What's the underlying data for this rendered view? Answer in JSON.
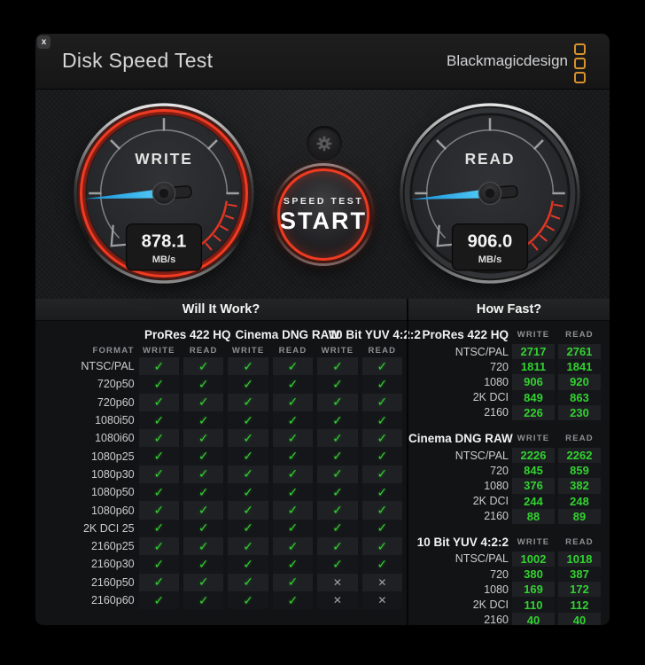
{
  "titlebar": {
    "title": "Disk Speed Test",
    "brand": "Blackmagicdesign",
    "close_label": "x"
  },
  "gauges": {
    "write": {
      "label": "WRITE",
      "value": "878.1",
      "unit": "MB/s",
      "needle_angle": 176
    },
    "read": {
      "label": "READ",
      "value": "906.0",
      "unit": "MB/s",
      "needle_angle": 175.5
    }
  },
  "start_button": {
    "line1": "SPEED TEST",
    "line2": "START"
  },
  "icons": {
    "check": "✓",
    "cross": "✕",
    "gear": "gear-icon"
  },
  "will_it_work": {
    "title": "Will It Work?",
    "format_header": "FORMAT",
    "codecs": [
      "ProRes 422 HQ",
      "Cinema DNG RAW",
      "10 Bit YUV 4:2:2"
    ],
    "sub_headers": [
      "WRITE",
      "READ",
      "WRITE",
      "READ",
      "WRITE",
      "READ"
    ],
    "rows": [
      {
        "format": "NTSC/PAL",
        "results": [
          true,
          true,
          true,
          true,
          true,
          true
        ]
      },
      {
        "format": "720p50",
        "results": [
          true,
          true,
          true,
          true,
          true,
          true
        ]
      },
      {
        "format": "720p60",
        "results": [
          true,
          true,
          true,
          true,
          true,
          true
        ]
      },
      {
        "format": "1080i50",
        "results": [
          true,
          true,
          true,
          true,
          true,
          true
        ]
      },
      {
        "format": "1080i60",
        "results": [
          true,
          true,
          true,
          true,
          true,
          true
        ]
      },
      {
        "format": "1080p25",
        "results": [
          true,
          true,
          true,
          true,
          true,
          true
        ]
      },
      {
        "format": "1080p30",
        "results": [
          true,
          true,
          true,
          true,
          true,
          true
        ]
      },
      {
        "format": "1080p50",
        "results": [
          true,
          true,
          true,
          true,
          true,
          true
        ]
      },
      {
        "format": "1080p60",
        "results": [
          true,
          true,
          true,
          true,
          true,
          true
        ]
      },
      {
        "format": "2K DCI 25",
        "results": [
          true,
          true,
          true,
          true,
          true,
          true
        ]
      },
      {
        "format": "2160p25",
        "results": [
          true,
          true,
          true,
          true,
          true,
          true
        ]
      },
      {
        "format": "2160p30",
        "results": [
          true,
          true,
          true,
          true,
          true,
          true
        ]
      },
      {
        "format": "2160p50",
        "results": [
          true,
          true,
          true,
          true,
          false,
          false
        ]
      },
      {
        "format": "2160p60",
        "results": [
          true,
          true,
          true,
          true,
          false,
          false
        ]
      }
    ]
  },
  "how_fast": {
    "title": "How Fast?",
    "sub_headers": [
      "WRITE",
      "READ"
    ],
    "groups": [
      {
        "codec": "ProRes 422 HQ",
        "rows": [
          {
            "format": "NTSC/PAL",
            "write": "2717",
            "read": "2761"
          },
          {
            "format": "720",
            "write": "1811",
            "read": "1841"
          },
          {
            "format": "1080",
            "write": "906",
            "read": "920"
          },
          {
            "format": "2K DCI",
            "write": "849",
            "read": "863"
          },
          {
            "format": "2160",
            "write": "226",
            "read": "230"
          }
        ]
      },
      {
        "codec": "Cinema DNG RAW",
        "rows": [
          {
            "format": "NTSC/PAL",
            "write": "2226",
            "read": "2262"
          },
          {
            "format": "720",
            "write": "845",
            "read": "859"
          },
          {
            "format": "1080",
            "write": "376",
            "read": "382"
          },
          {
            "format": "2K DCI",
            "write": "244",
            "read": "248"
          },
          {
            "format": "2160",
            "write": "88",
            "read": "89"
          }
        ]
      },
      {
        "codec": "10 Bit YUV 4:2:2",
        "rows": [
          {
            "format": "NTSC/PAL",
            "write": "1002",
            "read": "1018"
          },
          {
            "format": "720",
            "write": "380",
            "read": "387"
          },
          {
            "format": "1080",
            "write": "169",
            "read": "172"
          },
          {
            "format": "2K DCI",
            "write": "110",
            "read": "112"
          },
          {
            "format": "2160",
            "write": "40",
            "read": "40"
          }
        ]
      }
    ]
  },
  "colors": {
    "check_green": "#32d22f",
    "value_green": "#2fd32f",
    "accent_orange": "#d8922b",
    "needle_blue": "#22a7ee",
    "gauge_red": "#ef3b22"
  }
}
